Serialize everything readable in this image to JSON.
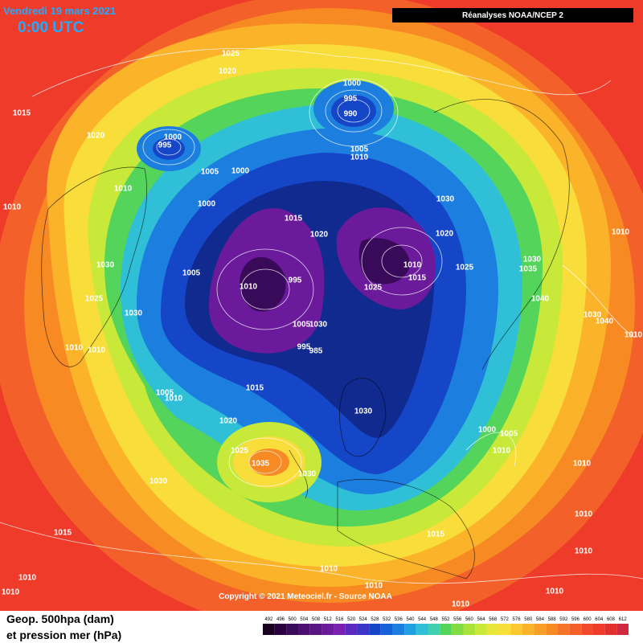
{
  "header": {
    "date": "Vendredi 19 mars 2021",
    "time": "0:00 UTC",
    "source": "Réanalyses NOAA/NCEP 2"
  },
  "copyright": "Copyright © 2021 Meteociel.fr - Source NOAA",
  "footer": {
    "line1": "Geop. 500hpa (dam)",
    "line2": "et pression mer (hPa)"
  },
  "scale": {
    "values": [
      "492",
      "496",
      "500",
      "504",
      "508",
      "512",
      "516",
      "520",
      "524",
      "528",
      "532",
      "536",
      "540",
      "544",
      "548",
      "552",
      "556",
      "560",
      "564",
      "568",
      "572",
      "576",
      "580",
      "584",
      "588",
      "592",
      "596",
      "600",
      "604",
      "608",
      "612"
    ]
  },
  "isobars": [
    "1025",
    "1020",
    "1015",
    "1020",
    "1000",
    "995",
    "1000",
    "995",
    "990",
    "1005",
    "1010",
    "1005",
    "1000",
    "1010",
    "1010",
    "1000",
    "1030",
    "1015",
    "1020",
    "1020",
    "1010",
    "1015",
    "1025",
    "1030",
    "1035",
    "1010",
    "1005",
    "995",
    "1010",
    "1025",
    "1030",
    "1025",
    "1030",
    "1040",
    "1030",
    "1040",
    "1010",
    "1005",
    "1030",
    "995",
    "985",
    "1010",
    "1010",
    "1015",
    "1005",
    "1010",
    "1030",
    "1020",
    "1000",
    "1005",
    "1010",
    "1025",
    "1035",
    "1030",
    "1010",
    "1030",
    "1015",
    "1015",
    "1010",
    "1010",
    "1010",
    "1010",
    "1010",
    "1010",
    "1010",
    "1010"
  ]
}
